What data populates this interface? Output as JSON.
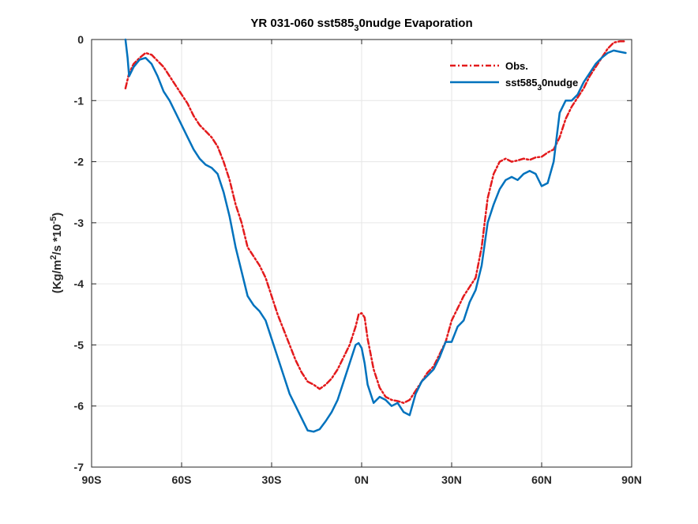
{
  "chart_data": {
    "type": "line",
    "title": "YR 031-060 sst585_30nudge Evaporation",
    "title_parts": {
      "a": "YR 031-060 sst585",
      "sub": "3",
      "b": "0nudge Evaporation"
    },
    "ylabel": "(Kg/m^2/s *10^-5)",
    "ylabel_parts": {
      "a": "(Kg/m",
      "sup1": "2",
      "b": "/s *10",
      "sup2": "-5",
      "c": ")"
    },
    "xlim": [
      -90,
      90
    ],
    "ylim": [
      -7,
      0
    ],
    "grid": true,
    "legend_position": "top-right",
    "x_ticks": [
      -90,
      -60,
      -30,
      0,
      30,
      60,
      90
    ],
    "x_tick_labels": [
      "90S",
      "60S",
      "30S",
      "0N",
      "30N",
      "60N",
      "90N"
    ],
    "y_ticks": [
      0,
      -1,
      -2,
      -3,
      -4,
      -5,
      -6,
      -7
    ],
    "y_tick_labels": [
      "0",
      "-1",
      "-2",
      "-3",
      "-4",
      "-5",
      "-6",
      "-7"
    ],
    "series": [
      {
        "name": "Obs.",
        "legend_parts": {
          "a": "Obs."
        },
        "color": "#e31a1c",
        "dash": "dashdot",
        "x": [
          -78.7,
          -77.5,
          -76,
          -74,
          -72,
          -70,
          -68,
          -66,
          -64,
          -62,
          -60,
          -58,
          -56,
          -54,
          -52,
          -50,
          -48,
          -46,
          -44,
          -42,
          -40,
          -38,
          -36,
          -34,
          -32,
          -30,
          -28,
          -26,
          -24,
          -22,
          -20,
          -18,
          -16,
          -14,
          -12,
          -10,
          -8,
          -6,
          -4,
          -2,
          -1,
          0,
          1,
          2,
          4,
          6,
          8,
          10,
          12,
          14,
          16,
          18,
          20,
          22,
          24,
          26,
          28,
          30,
          32,
          34,
          36,
          38,
          40,
          42,
          44,
          46,
          48,
          50,
          52,
          54,
          56,
          58,
          60,
          62,
          64,
          66,
          68,
          70,
          72,
          74,
          76,
          78,
          80,
          82,
          84,
          86,
          88
        ],
        "y": [
          -0.8,
          -0.55,
          -0.4,
          -0.3,
          -0.22,
          -0.25,
          -0.35,
          -0.45,
          -0.6,
          -0.75,
          -0.9,
          -1.05,
          -1.25,
          -1.4,
          -1.5,
          -1.6,
          -1.75,
          -2.0,
          -2.3,
          -2.7,
          -3.0,
          -3.4,
          -3.55,
          -3.7,
          -3.9,
          -4.2,
          -4.5,
          -4.75,
          -5.0,
          -5.25,
          -5.45,
          -5.6,
          -5.65,
          -5.72,
          -5.65,
          -5.55,
          -5.4,
          -5.2,
          -5.0,
          -4.7,
          -4.5,
          -4.48,
          -4.55,
          -4.9,
          -5.4,
          -5.7,
          -5.85,
          -5.9,
          -5.92,
          -5.95,
          -5.9,
          -5.75,
          -5.6,
          -5.45,
          -5.35,
          -5.15,
          -4.95,
          -4.6,
          -4.4,
          -4.2,
          -4.05,
          -3.9,
          -3.4,
          -2.6,
          -2.2,
          -2.0,
          -1.95,
          -2.0,
          -1.98,
          -1.95,
          -1.97,
          -1.93,
          -1.92,
          -1.85,
          -1.8,
          -1.6,
          -1.3,
          -1.1,
          -0.95,
          -0.8,
          -0.6,
          -0.45,
          -0.3,
          -0.15,
          -0.05,
          -0.03,
          -0.03
        ]
      },
      {
        "name": "sst585_30nudge",
        "legend_parts": {
          "a": "sst585",
          "sub": "3",
          "b": "0nudge"
        },
        "color": "#0072bd",
        "dash": "solid",
        "x": [
          -78.7,
          -78,
          -77.5,
          -76,
          -74,
          -72,
          -70,
          -68,
          -66,
          -64,
          -62,
          -60,
          -58,
          -56,
          -54,
          -52,
          -50,
          -48,
          -46,
          -44,
          -42,
          -40,
          -38,
          -36,
          -34,
          -32,
          -30,
          -28,
          -26,
          -24,
          -22,
          -20,
          -18,
          -16,
          -14,
          -12,
          -10,
          -8,
          -6,
          -4,
          -2,
          -1,
          0,
          1,
          2,
          4,
          6,
          8,
          10,
          12,
          14,
          16,
          18,
          20,
          22,
          24,
          26,
          28,
          30,
          32,
          34,
          36,
          38,
          40,
          42,
          44,
          46,
          48,
          50,
          52,
          54,
          56,
          58,
          60,
          62,
          64,
          66,
          68,
          70,
          72,
          74,
          76,
          78,
          80,
          82,
          84,
          86,
          88
        ],
        "y": [
          0.0,
          -0.3,
          -0.6,
          -0.45,
          -0.33,
          -0.3,
          -0.4,
          -0.6,
          -0.85,
          -1.0,
          -1.2,
          -1.4,
          -1.6,
          -1.8,
          -1.95,
          -2.05,
          -2.1,
          -2.2,
          -2.5,
          -2.9,
          -3.4,
          -3.8,
          -4.2,
          -4.35,
          -4.45,
          -4.6,
          -4.9,
          -5.2,
          -5.5,
          -5.8,
          -6.0,
          -6.2,
          -6.4,
          -6.42,
          -6.38,
          -6.25,
          -6.1,
          -5.9,
          -5.6,
          -5.3,
          -5.0,
          -4.97,
          -5.05,
          -5.3,
          -5.65,
          -5.95,
          -5.85,
          -5.9,
          -6.0,
          -5.95,
          -6.1,
          -6.15,
          -5.8,
          -5.6,
          -5.5,
          -5.4,
          -5.2,
          -4.95,
          -4.95,
          -4.7,
          -4.6,
          -4.3,
          -4.1,
          -3.7,
          -3.0,
          -2.7,
          -2.45,
          -2.3,
          -2.25,
          -2.3,
          -2.2,
          -2.15,
          -2.2,
          -2.4,
          -2.35,
          -2.0,
          -1.2,
          -1.0,
          -1.0,
          -0.9,
          -0.7,
          -0.55,
          -0.4,
          -0.3,
          -0.22,
          -0.18,
          -0.2,
          -0.22
        ]
      }
    ]
  }
}
